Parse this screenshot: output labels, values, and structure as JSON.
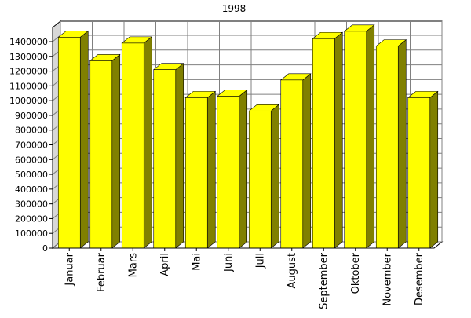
{
  "chart_data": {
    "type": "bar",
    "title": "1998",
    "xlabel": "",
    "ylabel": "",
    "categories": [
      "Januar",
      "Februar",
      "Mars",
      "April",
      "Mai",
      "Juni",
      "Juli",
      "August",
      "September",
      "Oktober",
      "November",
      "Desember"
    ],
    "values": [
      1430000,
      1270000,
      1390000,
      1210000,
      1020000,
      1030000,
      930000,
      1140000,
      1420000,
      1470000,
      1370000,
      1020000
    ],
    "ylim": [
      0,
      1400000
    ],
    "yticks": [
      0,
      100000,
      200000,
      300000,
      400000,
      500000,
      600000,
      700000,
      800000,
      900000,
      1000000,
      1100000,
      1200000,
      1300000,
      1400000
    ],
    "grid": true,
    "style": "3d",
    "colors": {
      "bar_front": "#ffff00",
      "bar_top": "#ffff00",
      "bar_side": "#808000",
      "plot_back": "#ffffff",
      "plot_side": "#d8d8d8",
      "grid": "#808080"
    }
  }
}
